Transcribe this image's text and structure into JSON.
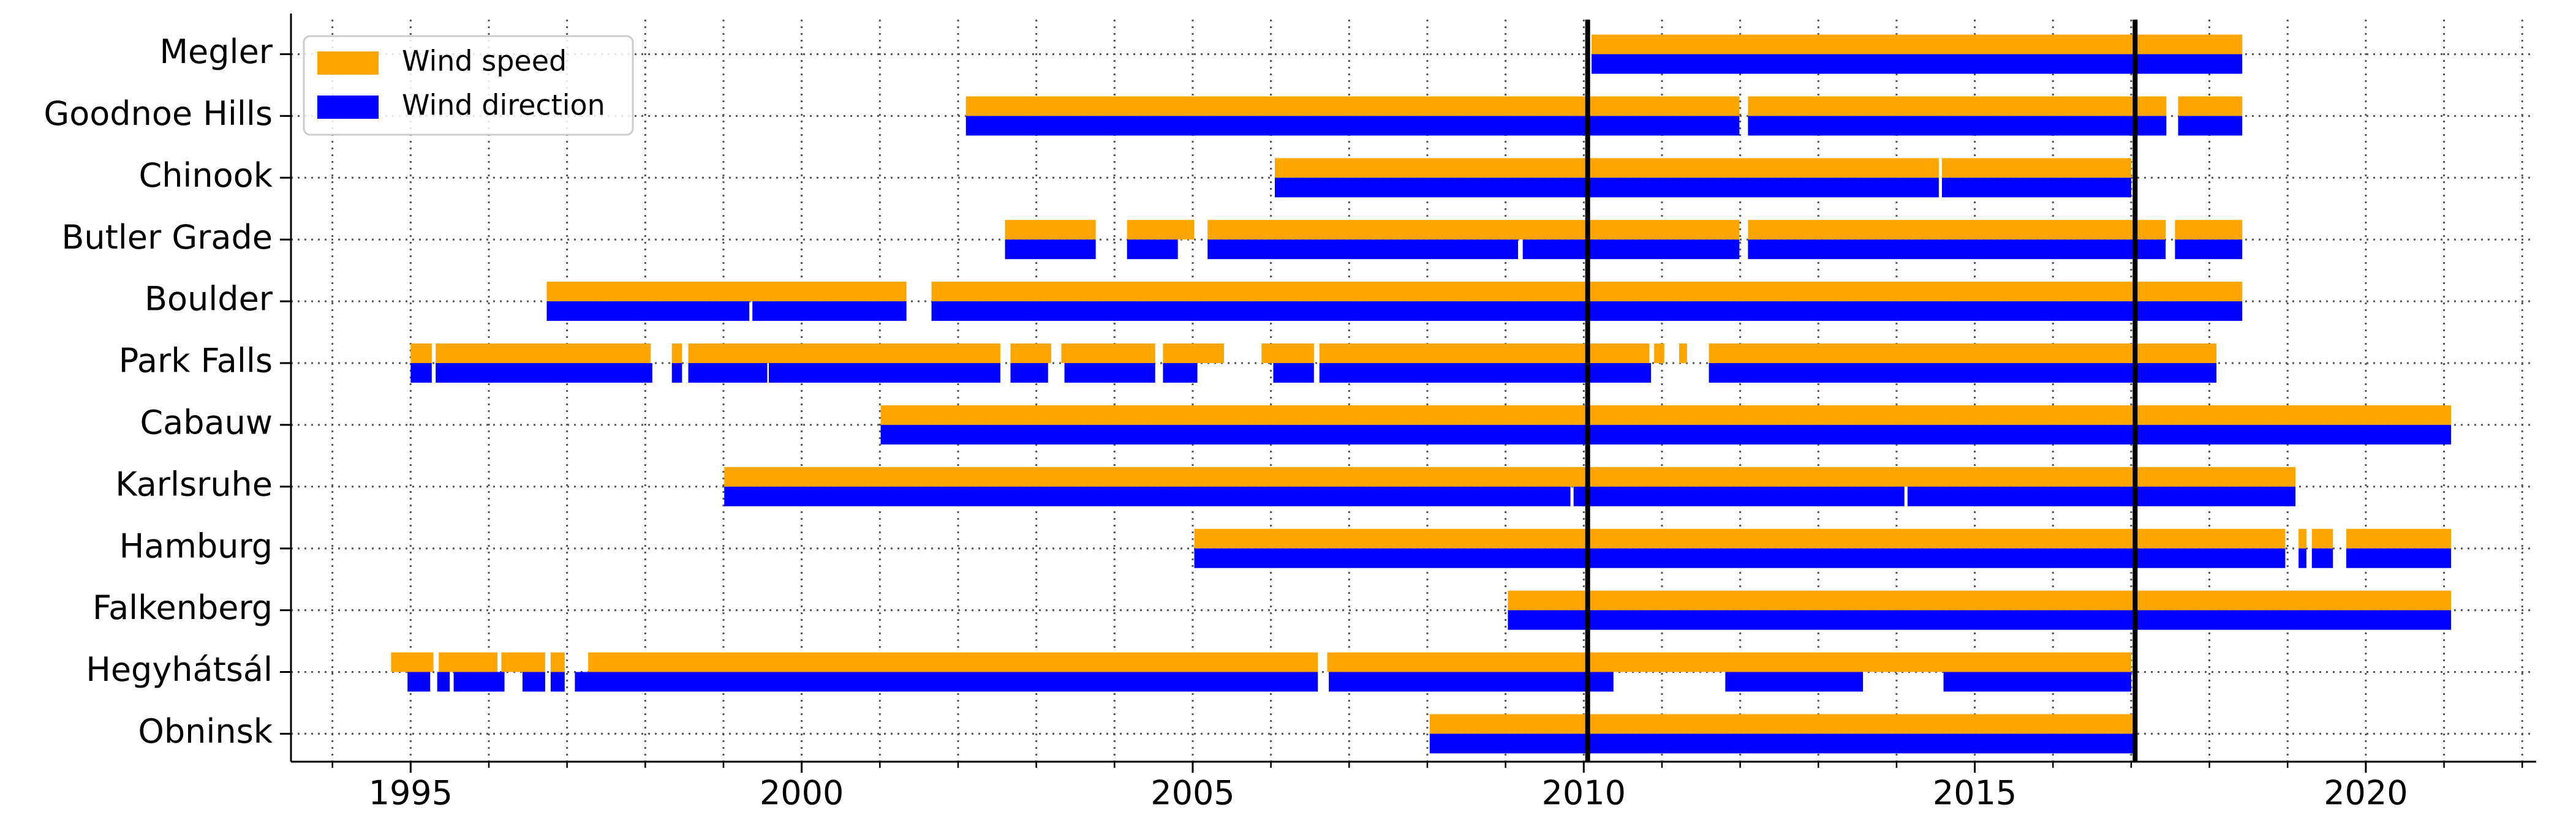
{
  "chart_data": {
    "type": "timeline",
    "categories": [
      "Megler",
      "Goodnoe Hills",
      "Chinook",
      "Butler Grade",
      "Boulder",
      "Park Falls",
      "Cabauw",
      "Karlsruhe",
      "Hamburg",
      "Falkenberg",
      "Hegyhátsál",
      "Obninsk"
    ],
    "series": [
      {
        "name": "Wind speed",
        "color": "#ffa500",
        "segments": [
          [
            [
              2010.1,
              2018.42
            ]
          ],
          [
            [
              2002.1,
              2011.99
            ],
            [
              2012.1,
              2017.45
            ],
            [
              2017.6,
              2018.42
            ]
          ],
          [
            [
              2006.05,
              2014.54
            ],
            [
              2014.58,
              2017.0
            ]
          ],
          [
            [
              2002.6,
              2003.76
            ],
            [
              2004.16,
              2005.02
            ],
            [
              2005.19,
              2011.99
            ],
            [
              2012.1,
              2017.44
            ],
            [
              2017.56,
              2018.42
            ]
          ],
          [
            [
              1996.74,
              2001.34
            ],
            [
              2001.66,
              2018.42
            ]
          ],
          [
            [
              1995.0,
              1995.27
            ],
            [
              1995.32,
              1998.07
            ],
            [
              1998.34,
              1998.47
            ],
            [
              1998.55,
              2002.54
            ],
            [
              2002.67,
              2003.19
            ],
            [
              2003.32,
              2004.52
            ],
            [
              2004.62,
              2005.4
            ],
            [
              2005.88,
              2006.55
            ],
            [
              2006.62,
              2010.84
            ],
            [
              2010.9,
              2011.03
            ],
            [
              2011.22,
              2011.32
            ],
            [
              2011.6,
              2018.09
            ]
          ],
          [
            [
              2001.01,
              2021.09
            ]
          ],
          [
            [
              1999.01,
              2019.1
            ]
          ],
          [
            [
              2005.02,
              2018.97
            ],
            [
              2019.14,
              2019.24
            ],
            [
              2019.31,
              2019.58
            ],
            [
              2019.75,
              2021.09
            ]
          ],
          [
            [
              2009.03,
              2021.09
            ]
          ],
          [
            [
              1994.75,
              1995.29
            ],
            [
              1995.36,
              1996.11
            ],
            [
              1996.16,
              1996.72
            ],
            [
              1996.79,
              1996.97
            ],
            [
              1997.27,
              2006.6
            ],
            [
              2006.72,
              2017.0
            ]
          ],
          [
            [
              2008.03,
              2017.04
            ]
          ]
        ]
      },
      {
        "name": "Wind direction",
        "color": "#0000ff",
        "segments": [
          [
            [
              2010.1,
              2018.42
            ]
          ],
          [
            [
              2002.1,
              2011.99
            ],
            [
              2012.1,
              2017.45
            ],
            [
              2017.6,
              2018.42
            ]
          ],
          [
            [
              2006.05,
              2014.54
            ],
            [
              2014.58,
              2017.0
            ]
          ],
          [
            [
              2002.6,
              2003.76
            ],
            [
              2004.16,
              2004.81
            ],
            [
              2005.19,
              2009.16
            ],
            [
              2009.22,
              2011.99
            ],
            [
              2012.1,
              2017.44
            ],
            [
              2017.56,
              2018.42
            ]
          ],
          [
            [
              1996.74,
              1999.33
            ],
            [
              1999.37,
              2001.34
            ],
            [
              2001.66,
              2018.42
            ]
          ],
          [
            [
              1995.0,
              1995.27
            ],
            [
              1995.32,
              1998.09
            ],
            [
              1998.34,
              1998.47
            ],
            [
              1998.55,
              1999.56
            ],
            [
              1999.58,
              2002.54
            ],
            [
              2002.67,
              2003.15
            ],
            [
              2003.36,
              2004.52
            ],
            [
              2004.62,
              2005.06
            ],
            [
              2006.03,
              2006.55
            ],
            [
              2006.62,
              2010.86
            ],
            [
              2011.6,
              2018.09
            ]
          ],
          [
            [
              2001.01,
              2021.09
            ]
          ],
          [
            [
              1999.01,
              2009.83
            ],
            [
              2009.87,
              2014.1
            ],
            [
              2014.14,
              2019.1
            ]
          ],
          [
            [
              2005.02,
              2018.97
            ],
            [
              2019.14,
              2019.24
            ],
            [
              2019.31,
              2019.58
            ],
            [
              2019.75,
              2021.09
            ]
          ],
          [
            [
              2009.03,
              2021.09
            ]
          ],
          [
            [
              1994.96,
              1995.25
            ],
            [
              1995.34,
              1995.5
            ],
            [
              1995.55,
              1996.2
            ],
            [
              1996.43,
              1996.72
            ],
            [
              1996.79,
              1996.97
            ],
            [
              1997.1,
              2006.6
            ],
            [
              2006.74,
              2010.38
            ],
            [
              2011.81,
              2013.57
            ],
            [
              2014.6,
              2017.0
            ]
          ],
          [
            [
              2008.03,
              2017.04
            ]
          ]
        ]
      }
    ],
    "xlim": [
      1993.47,
      2022.1
    ],
    "xticks": [
      1995,
      2000,
      2005,
      2010,
      2015,
      2020
    ],
    "xminorticks": [
      1994,
      1995,
      1996,
      1997,
      1998,
      1999,
      2000,
      2001,
      2002,
      2003,
      2004,
      2005,
      2006,
      2007,
      2008,
      2009,
      2010,
      2011,
      2012,
      2013,
      2014,
      2015,
      2016,
      2017,
      2018,
      2019,
      2020,
      2021,
      2022
    ],
    "vlines": [
      2010.05,
      2017.05
    ],
    "vline_color": "#000000",
    "grid": true,
    "legend": "upper left"
  }
}
